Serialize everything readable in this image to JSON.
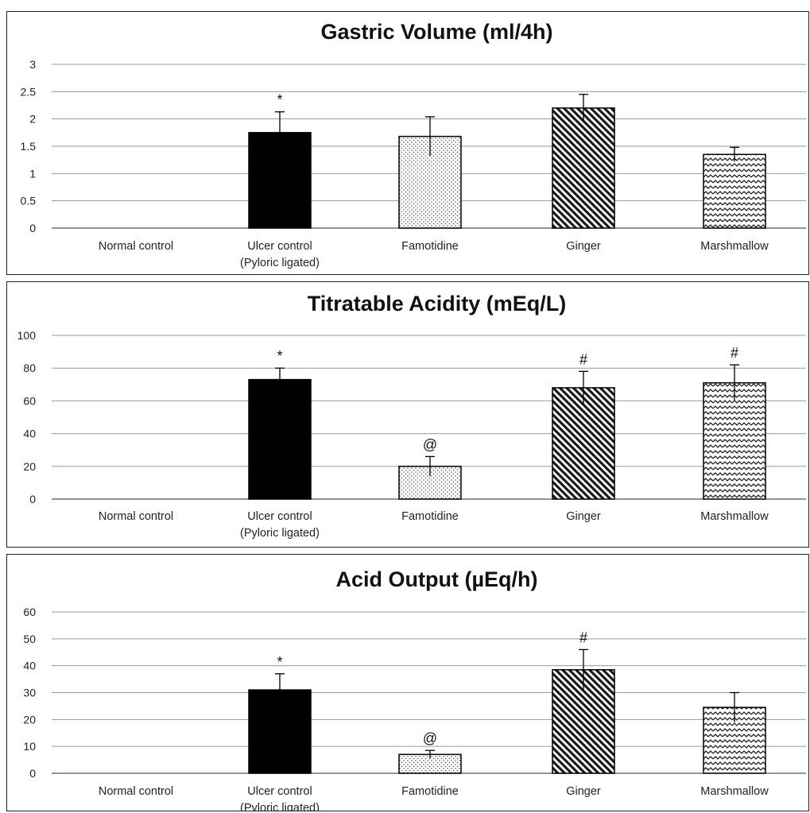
{
  "chart_data": [
    {
      "type": "bar",
      "title": "Gastric Volume (ml/4h)",
      "categories": [
        [
          "Normal control"
        ],
        [
          "Ulcer control",
          "(Pyloric ligated)"
        ],
        [
          "Famotidine"
        ],
        [
          "Ginger"
        ],
        [
          "Marshmallow"
        ]
      ],
      "values": [
        0,
        1.75,
        1.68,
        2.2,
        1.35
      ],
      "errors": [
        0,
        0.38,
        0.36,
        0.25,
        0.13
      ],
      "annotations": [
        "",
        "*",
        "",
        "",
        ""
      ],
      "ylim": [
        0,
        3
      ],
      "yticks": [
        "0",
        "0.5",
        "1",
        "1.5",
        "2",
        "2.5",
        "3"
      ],
      "grid": true
    },
    {
      "type": "bar",
      "title": "Titratable Acidity (mEq/L)",
      "categories": [
        [
          "Normal control"
        ],
        [
          "Ulcer control",
          "(Pyloric ligated)"
        ],
        [
          "Famotidine"
        ],
        [
          "Ginger"
        ],
        [
          "Marshmallow"
        ]
      ],
      "values": [
        0,
        73,
        20,
        68,
        71
      ],
      "errors": [
        0,
        7,
        6,
        10,
        11
      ],
      "annotations": [
        "",
        "*",
        "@",
        "#",
        "#"
      ],
      "ylim": [
        0,
        100
      ],
      "yticks": [
        "0",
        "20",
        "40",
        "60",
        "80",
        "100"
      ],
      "grid": true
    },
    {
      "type": "bar",
      "title": "Acid Output (µEq/h)",
      "categories": [
        [
          "Normal control"
        ],
        [
          "Ulcer control",
          "(Pyloric ligated)"
        ],
        [
          "Famotidine"
        ],
        [
          "Ginger"
        ],
        [
          "Marshmallow"
        ]
      ],
      "values": [
        0,
        31,
        7,
        38.5,
        24.5
      ],
      "errors": [
        0,
        6,
        1.5,
        7.5,
        5.5
      ],
      "annotations": [
        "",
        "*",
        "@",
        "#",
        ""
      ],
      "ylim": [
        0,
        60
      ],
      "yticks": [
        "0",
        "10",
        "20",
        "30",
        "40",
        "50",
        "60"
      ],
      "grid": true
    }
  ],
  "bar_styles": [
    "solid",
    "solid-black",
    "dots",
    "diagonal-hatch",
    "zigzag"
  ]
}
